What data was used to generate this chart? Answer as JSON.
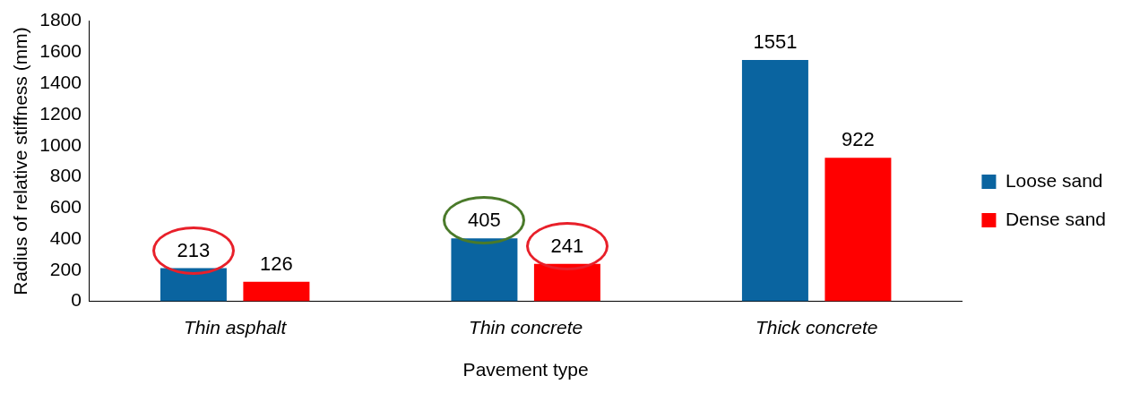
{
  "chart_data": {
    "type": "bar",
    "xlabel": "Pavement type",
    "ylabel": "Radius of relative stiffness (mm)",
    "categories": [
      "Thin asphalt",
      "Thin concrete",
      "Thick concrete"
    ],
    "series": [
      {
        "name": "Loose sand",
        "color": "#0a64a0",
        "values": [
          213,
          405,
          1551
        ]
      },
      {
        "name": "Dense sand",
        "color": "#ff0000",
        "values": [
          126,
          241,
          922
        ]
      }
    ],
    "ylim": [
      0,
      1800
    ],
    "yticks": [
      0,
      200,
      400,
      600,
      800,
      1000,
      1200,
      1400,
      1600,
      1800
    ],
    "grid": false,
    "legend": "right",
    "data_labels": true
  }
}
